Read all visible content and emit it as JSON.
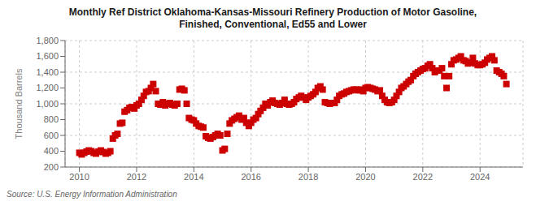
{
  "chart_data": {
    "type": "scatter",
    "title": "Monthly Ref District Oklahoma-Kansas-Missouri Refinery Production of Motor Gasoline,\nFinished, Conventional, Ed55 and Lower",
    "ylabel": "Thousand Barrels",
    "source": "Source: U.S. Energy Information Administration",
    "color": "#CC0000",
    "marker": "square",
    "grid": true,
    "ylim": [
      200,
      1800
    ],
    "yticks": [
      200,
      400,
      600,
      800,
      {
        "value": 1000,
        "label": "1,000"
      },
      {
        "value": 1200,
        "label": "1,200"
      },
      {
        "value": 1400,
        "label": "1,400"
      },
      {
        "value": 1600,
        "label": "1,600"
      },
      {
        "value": 1800,
        "label": "1,800"
      }
    ],
    "xlim": [
      2009.5,
      2025.5
    ],
    "xticks": [
      2010,
      2012,
      2014,
      2016,
      2018,
      2020,
      2022,
      2024
    ],
    "x": [
      2010.0,
      2010.08,
      2010.17,
      2010.25,
      2010.33,
      2010.42,
      2010.5,
      2010.58,
      2010.67,
      2010.75,
      2010.83,
      2010.92,
      2011.0,
      2011.08,
      2011.17,
      2011.25,
      2011.33,
      2011.42,
      2011.5,
      2011.58,
      2011.67,
      2011.75,
      2011.83,
      2011.92,
      2012.0,
      2012.08,
      2012.17,
      2012.25,
      2012.33,
      2012.42,
      2012.5,
      2012.58,
      2012.67,
      2012.75,
      2012.83,
      2012.92,
      2013.0,
      2013.08,
      2013.17,
      2013.25,
      2013.33,
      2013.42,
      2013.5,
      2013.58,
      2013.67,
      2013.75,
      2013.83,
      2013.92,
      2014.0,
      2014.08,
      2014.17,
      2014.25,
      2014.33,
      2014.42,
      2014.5,
      2014.58,
      2014.67,
      2014.75,
      2014.83,
      2014.92,
      2015.0,
      2015.08,
      2015.17,
      2015.25,
      2015.33,
      2015.42,
      2015.5,
      2015.58,
      2015.67,
      2015.75,
      2015.83,
      2015.92,
      2016.0,
      2016.08,
      2016.17,
      2016.25,
      2016.33,
      2016.42,
      2016.5,
      2016.58,
      2016.67,
      2016.75,
      2016.83,
      2016.92,
      2017.0,
      2017.08,
      2017.17,
      2017.25,
      2017.33,
      2017.42,
      2017.5,
      2017.58,
      2017.67,
      2017.75,
      2017.83,
      2017.92,
      2018.0,
      2018.08,
      2018.17,
      2018.25,
      2018.33,
      2018.42,
      2018.5,
      2018.58,
      2018.67,
      2018.75,
      2018.83,
      2018.92,
      2019.0,
      2019.08,
      2019.17,
      2019.25,
      2019.33,
      2019.42,
      2019.5,
      2019.58,
      2019.67,
      2019.75,
      2019.83,
      2019.92,
      2020.0,
      2020.08,
      2020.17,
      2020.25,
      2020.33,
      2020.42,
      2020.5,
      2020.58,
      2020.67,
      2020.75,
      2020.83,
      2020.92,
      2021.0,
      2021.08,
      2021.17,
      2021.25,
      2021.33,
      2021.42,
      2021.5,
      2021.58,
      2021.67,
      2021.75,
      2021.83,
      2021.92,
      2022.0,
      2022.08,
      2022.17,
      2022.25,
      2022.33,
      2022.42,
      2022.5,
      2022.58,
      2022.67,
      2022.75,
      2022.83,
      2022.92,
      2023.0,
      2023.08,
      2023.17,
      2023.25,
      2023.33,
      2023.42,
      2023.5,
      2023.58,
      2023.67,
      2023.75,
      2023.83,
      2023.92,
      2024.0,
      2024.08,
      2024.17,
      2024.25,
      2024.33,
      2024.42,
      2024.5,
      2024.58,
      2024.67,
      2024.75,
      2024.83,
      2024.92
    ],
    "values": [
      380,
      360,
      380,
      395,
      410,
      400,
      380,
      370,
      395,
      410,
      390,
      370,
      380,
      400,
      560,
      600,
      620,
      750,
      760,
      900,
      920,
      950,
      960,
      940,
      980,
      1000,
      1050,
      1100,
      1150,
      1160,
      1200,
      1250,
      1160,
      1000,
      990,
      1020,
      980,
      1000,
      1010,
      990,
      980,
      1000,
      1180,
      1190,
      1170,
      1000,
      820,
      800,
      790,
      750,
      720,
      710,
      700,
      590,
      570,
      560,
      580,
      600,
      620,
      600,
      410,
      430,
      620,
      750,
      790,
      810,
      830,
      850,
      800,
      820,
      760,
      720,
      760,
      800,
      820,
      870,
      910,
      950,
      1000,
      980,
      1020,
      1040,
      1010,
      1000,
      990,
      1010,
      1050,
      1000,
      990,
      1000,
      1020,
      1060,
      1080,
      1100,
      1080,
      1050,
      1080,
      1100,
      1120,
      1150,
      1200,
      1220,
      1180,
      1020,
      1010,
      1000,
      1010,
      1010,
      1050,
      1100,
      1120,
      1130,
      1150,
      1160,
      1170,
      1180,
      1180,
      1170,
      1180,
      1160,
      1200,
      1210,
      1200,
      1190,
      1180,
      1160,
      1170,
      1100,
      1050,
      1020,
      1010,
      1020,
      1050,
      1100,
      1150,
      1200,
      1220,
      1250,
      1280,
      1300,
      1350,
      1380,
      1400,
      1420,
      1440,
      1450,
      1480,
      1500,
      1450,
      1400,
      1420,
      1420,
      1450,
      1350,
      1200,
      1350,
      1500,
      1550,
      1560,
      1580,
      1600,
      1550,
      1540,
      1510,
      1520,
      1580,
      1510,
      1490,
      1490,
      1500,
      1520,
      1560,
      1580,
      1600,
      1550,
      1420,
      1400,
      1380,
      1350,
      1250
    ]
  }
}
